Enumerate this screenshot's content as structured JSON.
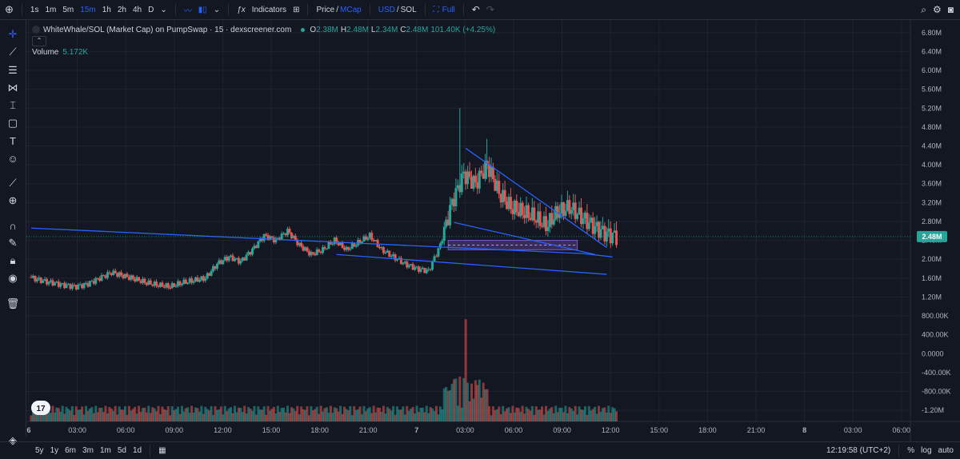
{
  "toolbar": {
    "timeframes": [
      "1s",
      "1m",
      "5m",
      "15m",
      "1h",
      "2h",
      "4h",
      "D"
    ],
    "active_timeframe": "15m",
    "indicators_label": "Indicators",
    "price_label": "Price",
    "mcap_label": "MCap",
    "usd_label": "USD",
    "sol_label": "SOL",
    "full_label": "Full",
    "slash": "/"
  },
  "legend": {
    "title": "WhiteWhale/SOL (Market Cap) on PumpSwap · 15 · dexscreener.com",
    "o_label": "O",
    "o_value": "2.38M",
    "h_label": "H",
    "h_value": "2.48M",
    "l_label": "L",
    "l_value": "2.34M",
    "c_label": "C",
    "c_value": "2.48M",
    "change": "101.40K (+4.25%)",
    "volume_label": "Volume",
    "volume_value": "5.172K"
  },
  "bottombar": {
    "ranges": [
      "5y",
      "1y",
      "6m",
      "3m",
      "1m",
      "5d",
      "1d"
    ],
    "clock": "12:19:58 (UTC+2)",
    "percent_label": "%",
    "log_label": "log",
    "auto_label": "auto"
  },
  "colors": {
    "up": "#26a69a",
    "down": "#ef5350",
    "trendline": "#2962ff",
    "zone": "#7e57c2"
  },
  "chart_data": {
    "type": "candlestick",
    "title": "WhiteWhale/SOL (Market Cap) on PumpSwap · 15 · dexscreener.com",
    "last_price_label": "2.48M",
    "y_ticks": [
      "6.80M",
      "6.40M",
      "6.00M",
      "5.60M",
      "5.20M",
      "4.80M",
      "4.40M",
      "4.00M",
      "3.60M",
      "3.20M",
      "2.80M",
      "2.40M",
      "2.00M",
      "1.60M",
      "1.20M",
      "800.00K",
      "400.00K",
      "0.0000",
      "-400.00K",
      "-800.00K",
      "-1.20M"
    ],
    "x_ticks": [
      "6",
      "03:00",
      "06:00",
      "09:00",
      "12:00",
      "15:00",
      "18:00",
      "21:00",
      "7",
      "03:00",
      "06:00",
      "09:00",
      "12:00",
      "15:00",
      "18:00",
      "21:00",
      "8",
      "03:00",
      "06:00"
    ],
    "ylim": [
      -1.3,
      7.0
    ],
    "candles_summary": [
      {
        "t": 0,
        "c": 1.62
      },
      {
        "t": 1,
        "c": 1.55
      },
      {
        "t": 2,
        "c": 1.5
      },
      {
        "t": 3,
        "c": 1.45
      },
      {
        "t": 4,
        "c": 1.42
      },
      {
        "t": 5,
        "c": 1.48
      },
      {
        "t": 6,
        "c": 1.6
      },
      {
        "t": 7,
        "c": 1.72
      },
      {
        "t": 8,
        "c": 1.65
      },
      {
        "t": 9,
        "c": 1.58
      },
      {
        "t": 10,
        "c": 1.5
      },
      {
        "t": 11,
        "c": 1.45
      },
      {
        "t": 12,
        "c": 1.42
      },
      {
        "t": 13,
        "c": 1.5
      },
      {
        "t": 14,
        "c": 1.55
      },
      {
        "t": 15,
        "c": 1.6
      },
      {
        "t": 16,
        "c": 1.9
      },
      {
        "t": 17,
        "c": 2.05
      },
      {
        "t": 18,
        "c": 1.95
      },
      {
        "t": 19,
        "c": 2.2
      },
      {
        "t": 20,
        "c": 2.5
      },
      {
        "t": 21,
        "c": 2.4
      },
      {
        "t": 22,
        "c": 2.6
      },
      {
        "t": 23,
        "c": 2.3
      },
      {
        "t": 24,
        "c": 2.1
      },
      {
        "t": 25,
        "c": 2.2
      },
      {
        "t": 26,
        "c": 2.4
      },
      {
        "t": 27,
        "c": 2.2
      },
      {
        "t": 28,
        "c": 2.35
      },
      {
        "t": 29,
        "c": 2.5
      },
      {
        "t": 30,
        "c": 2.2
      },
      {
        "t": 31,
        "c": 2.05
      },
      {
        "t": 32,
        "c": 1.9
      },
      {
        "t": 33,
        "c": 1.8
      },
      {
        "t": 34,
        "c": 1.75
      },
      {
        "t": 35,
        "c": 2.3
      },
      {
        "t": 36,
        "c": 3.2
      },
      {
        "t": 37,
        "c": 3.8
      },
      {
        "t": 38,
        "c": 3.6
      },
      {
        "t": 39,
        "c": 4.0
      },
      {
        "t": 40,
        "c": 3.4
      },
      {
        "t": 41,
        "c": 3.1
      },
      {
        "t": 42,
        "c": 3.0
      },
      {
        "t": 43,
        "c": 2.9
      },
      {
        "t": 44,
        "c": 2.7
      },
      {
        "t": 45,
        "c": 3.0
      },
      {
        "t": 46,
        "c": 3.1
      },
      {
        "t": 47,
        "c": 2.9
      },
      {
        "t": 48,
        "c": 2.7
      },
      {
        "t": 49,
        "c": 2.55
      },
      {
        "t": 50,
        "c": 2.48
      }
    ],
    "trendlines": [
      {
        "from": {
          "t": 0,
          "v": 2.66
        },
        "to": {
          "t": 47,
          "v": 2.12
        }
      },
      {
        "from": {
          "t": 26,
          "v": 2.1
        },
        "to": {
          "t": 49,
          "v": 1.68
        }
      },
      {
        "from": {
          "t": 37,
          "v": 4.35
        },
        "to": {
          "t": 49,
          "v": 2.25
        }
      },
      {
        "from": {
          "t": 36,
          "v": 2.78
        },
        "to": {
          "t": 48,
          "v": 2.1
        }
      }
    ],
    "zone": {
      "from_t": 35.5,
      "to_t": 46.5,
      "top": 2.4,
      "bottom": 2.2,
      "mid": 2.3
    },
    "volume_peaks": [
      {
        "t": 37,
        "v": 0.85
      },
      {
        "t": 36,
        "v": 0.25
      },
      {
        "t": 38,
        "v": 0.2
      }
    ]
  }
}
